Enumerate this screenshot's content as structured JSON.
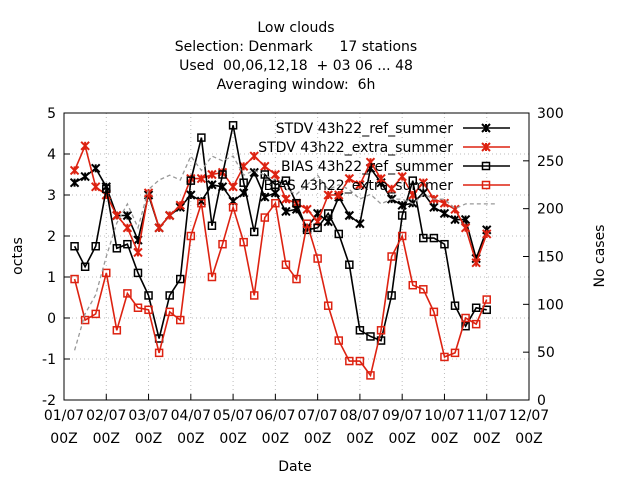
{
  "chart_data": {
    "type": "line",
    "title_lines": [
      "Low clouds",
      "Selection: Denmark      17 stations",
      "Used  00,06,12,18  + 03 06 ... 48",
      "Averaging window:  6h"
    ],
    "xlabel": "Date",
    "ylabel": "octas",
    "y2label": "No cases",
    "ylim": [
      -2,
      5
    ],
    "y2lim": [
      0,
      300
    ],
    "yticks": [
      -2,
      -1,
      0,
      1,
      2,
      3,
      4,
      5
    ],
    "y2ticks": [
      0,
      50,
      100,
      150,
      200,
      250,
      300
    ],
    "xlim": [
      0,
      11
    ],
    "xticks": [
      {
        "x": 0,
        "l1": "01/07",
        "l2": "00Z"
      },
      {
        "x": 1,
        "l1": "02/07",
        "l2": "00Z"
      },
      {
        "x": 2,
        "l1": "03/07",
        "l2": "00Z"
      },
      {
        "x": 3,
        "l1": "04/07",
        "l2": "00Z"
      },
      {
        "x": 4,
        "l1": "05/07",
        "l2": "00Z"
      },
      {
        "x": 5,
        "l1": "06/07",
        "l2": "00Z"
      },
      {
        "x": 6,
        "l1": "07/07",
        "l2": "00Z"
      },
      {
        "x": 7,
        "l1": "08/07",
        "l2": "00Z"
      },
      {
        "x": 8,
        "l1": "09/07",
        "l2": "00Z"
      },
      {
        "x": 9,
        "l1": "10/07",
        "l2": "00Z"
      },
      {
        "x": 10,
        "l1": "11/07",
        "l2": "00Z"
      },
      {
        "x": 11,
        "l1": "12/07",
        "l2": "00Z"
      }
    ],
    "legend_position": "top-right",
    "series": [
      {
        "name": "STDV 43h22_ref_summer",
        "color": "#000000",
        "marker": "star",
        "axis": "y",
        "points": [
          [
            0.25,
            3.3
          ],
          [
            0.5,
            3.45
          ],
          [
            0.75,
            3.65
          ],
          [
            1.0,
            3.2
          ],
          [
            1.25,
            2.5
          ],
          [
            1.5,
            2.5
          ],
          [
            1.75,
            1.9
          ],
          [
            2.0,
            3.0
          ],
          [
            2.25,
            2.2
          ],
          [
            2.5,
            2.5
          ],
          [
            2.75,
            2.7
          ],
          [
            3.0,
            3.0
          ],
          [
            3.25,
            2.85
          ],
          [
            3.5,
            3.25
          ],
          [
            3.75,
            3.2
          ],
          [
            4.0,
            2.85
          ],
          [
            4.25,
            3.05
          ],
          [
            4.5,
            3.55
          ],
          [
            4.75,
            2.95
          ],
          [
            5.0,
            3.05
          ],
          [
            5.25,
            2.6
          ],
          [
            5.5,
            2.65
          ],
          [
            5.75,
            2.2
          ],
          [
            6.0,
            2.55
          ],
          [
            6.25,
            2.35
          ],
          [
            6.5,
            2.95
          ],
          [
            6.75,
            2.5
          ],
          [
            7.0,
            2.3
          ],
          [
            7.25,
            3.65
          ],
          [
            7.5,
            3.3
          ],
          [
            7.75,
            2.9
          ],
          [
            8.0,
            2.75
          ],
          [
            8.25,
            2.8
          ],
          [
            8.5,
            3.05
          ],
          [
            8.75,
            2.7
          ],
          [
            9.0,
            2.55
          ],
          [
            9.25,
            2.4
          ],
          [
            9.5,
            2.4
          ],
          [
            9.75,
            1.45
          ],
          [
            10.0,
            2.15
          ]
        ]
      },
      {
        "name": "STDV 43h22_extra_summer",
        "color": "#dd2211",
        "marker": "star",
        "axis": "y",
        "points": [
          [
            0.25,
            3.6
          ],
          [
            0.5,
            4.2
          ],
          [
            0.75,
            3.2
          ],
          [
            1.0,
            3.0
          ],
          [
            1.25,
            2.5
          ],
          [
            1.5,
            2.2
          ],
          [
            1.75,
            1.6
          ],
          [
            2.0,
            3.05
          ],
          [
            2.25,
            2.2
          ],
          [
            2.5,
            2.5
          ],
          [
            2.75,
            2.75
          ],
          [
            3.0,
            3.4
          ],
          [
            3.25,
            3.4
          ],
          [
            3.5,
            3.5
          ],
          [
            3.75,
            3.55
          ],
          [
            4.0,
            3.2
          ],
          [
            4.25,
            3.7
          ],
          [
            4.5,
            3.95
          ],
          [
            4.75,
            3.7
          ],
          [
            5.0,
            3.5
          ],
          [
            5.25,
            2.9
          ],
          [
            5.5,
            2.8
          ],
          [
            5.75,
            2.65
          ],
          [
            6.0,
            2.35
          ],
          [
            6.25,
            3.0
          ],
          [
            6.5,
            3.0
          ],
          [
            6.75,
            3.4
          ],
          [
            7.0,
            3.25
          ],
          [
            7.25,
            3.8
          ],
          [
            7.5,
            3.4
          ],
          [
            7.75,
            3.15
          ],
          [
            8.0,
            3.45
          ],
          [
            8.25,
            3.0
          ],
          [
            8.5,
            3.3
          ],
          [
            8.75,
            2.9
          ],
          [
            9.0,
            2.8
          ],
          [
            9.25,
            2.65
          ],
          [
            9.5,
            2.2
          ],
          [
            9.75,
            1.35
          ],
          [
            10.0,
            2.05
          ]
        ]
      },
      {
        "name": "BIAS 43h22_ref_summer",
        "color": "#000000",
        "marker": "square",
        "axis": "y",
        "points": [
          [
            0.25,
            1.75
          ],
          [
            0.5,
            1.25
          ],
          [
            0.75,
            1.75
          ],
          [
            1.0,
            3.15
          ],
          [
            1.25,
            1.7
          ],
          [
            1.5,
            1.8
          ],
          [
            1.75,
            1.1
          ],
          [
            2.0,
            0.55
          ],
          [
            2.25,
            -0.5
          ],
          [
            2.5,
            0.55
          ],
          [
            2.75,
            0.95
          ],
          [
            3.0,
            3.35
          ],
          [
            3.25,
            4.4
          ],
          [
            3.5,
            2.25
          ],
          [
            3.75,
            3.5
          ],
          [
            4.0,
            4.7
          ],
          [
            4.25,
            3.3
          ],
          [
            4.5,
            2.1
          ],
          [
            4.75,
            3.5
          ],
          [
            5.0,
            3.25
          ],
          [
            5.25,
            3.35
          ],
          [
            5.5,
            2.8
          ],
          [
            5.75,
            2.15
          ],
          [
            6.0,
            2.2
          ],
          [
            6.25,
            2.55
          ],
          [
            6.5,
            2.05
          ],
          [
            6.75,
            1.3
          ],
          [
            7.0,
            -0.3
          ],
          [
            7.25,
            -0.45
          ],
          [
            7.5,
            -0.55
          ],
          [
            7.75,
            0.55
          ],
          [
            8.0,
            2.5
          ],
          [
            8.25,
            3.35
          ],
          [
            8.5,
            1.95
          ],
          [
            8.75,
            1.95
          ],
          [
            9.0,
            1.8
          ],
          [
            9.25,
            0.3
          ],
          [
            9.5,
            -0.2
          ],
          [
            9.75,
            0.25
          ],
          [
            10.0,
            0.2
          ]
        ]
      },
      {
        "name": "BIAS 43h22_extra_summer",
        "color": "#dd2211",
        "marker": "square",
        "axis": "y",
        "points": [
          [
            0.25,
            0.95
          ],
          [
            0.5,
            -0.05
          ],
          [
            0.75,
            0.1
          ],
          [
            1.0,
            1.1
          ],
          [
            1.25,
            -0.3
          ],
          [
            1.5,
            0.6
          ],
          [
            1.75,
            0.25
          ],
          [
            2.0,
            0.2
          ],
          [
            2.25,
            -0.85
          ],
          [
            2.5,
            0.15
          ],
          [
            2.75,
            -0.05
          ],
          [
            3.0,
            2.0
          ],
          [
            3.25,
            2.8
          ],
          [
            3.5,
            1.0
          ],
          [
            3.75,
            1.8
          ],
          [
            4.0,
            2.7
          ],
          [
            4.25,
            1.85
          ],
          [
            4.5,
            0.55
          ],
          [
            4.75,
            2.45
          ],
          [
            5.0,
            2.8
          ],
          [
            5.25,
            1.3
          ],
          [
            5.5,
            0.95
          ],
          [
            5.75,
            2.3
          ],
          [
            6.0,
            1.45
          ],
          [
            6.25,
            0.3
          ],
          [
            6.5,
            -0.55
          ],
          [
            6.75,
            -1.05
          ],
          [
            7.0,
            -1.05
          ],
          [
            7.25,
            -1.4
          ],
          [
            7.5,
            -0.3
          ],
          [
            7.75,
            1.5
          ],
          [
            8.0,
            2.0
          ],
          [
            8.25,
            0.8
          ],
          [
            8.5,
            0.7
          ],
          [
            8.75,
            0.15
          ],
          [
            9.0,
            -0.95
          ],
          [
            9.25,
            -0.85
          ],
          [
            9.5,
            0.0
          ],
          [
            9.75,
            -0.15
          ],
          [
            10.0,
            0.45
          ]
        ]
      },
      {
        "name": "",
        "color": "#999999",
        "marker": "none",
        "dashed": true,
        "axis": "y2",
        "points": [
          [
            0.25,
            52
          ],
          [
            0.5,
            90
          ],
          [
            0.75,
            110
          ],
          [
            1.0,
            150
          ],
          [
            1.25,
            185
          ],
          [
            1.5,
            205
          ],
          [
            1.75,
            180
          ],
          [
            2.0,
            220
          ],
          [
            2.25,
            230
          ],
          [
            2.5,
            235
          ],
          [
            2.75,
            230
          ],
          [
            3.0,
            255
          ],
          [
            3.25,
            240
          ],
          [
            3.5,
            255
          ],
          [
            3.75,
            250
          ],
          [
            4.0,
            255
          ],
          [
            4.25,
            235
          ],
          [
            4.5,
            240
          ],
          [
            4.75,
            235
          ],
          [
            5.0,
            230
          ],
          [
            5.25,
            220
          ],
          [
            5.5,
            215
          ],
          [
            5.75,
            225
          ],
          [
            6.0,
            235
          ],
          [
            6.25,
            220
          ],
          [
            6.5,
            225
          ],
          [
            6.75,
            220
          ],
          [
            7.0,
            210
          ],
          [
            7.25,
            215
          ],
          [
            7.5,
            205
          ],
          [
            7.75,
            210
          ],
          [
            8.0,
            210
          ],
          [
            8.25,
            205
          ],
          [
            8.5,
            215
          ],
          [
            8.75,
            210
          ],
          [
            9.0,
            210
          ],
          [
            9.25,
            200
          ],
          [
            9.5,
            205
          ],
          [
            9.75,
            205
          ],
          [
            10.0,
            205
          ],
          [
            10.25,
            205
          ]
        ]
      }
    ],
    "legend": [
      {
        "label": "STDV 43h22_ref_summer",
        "color": "#000000",
        "marker": "star"
      },
      {
        "label": "STDV 43h22_extra_summer",
        "color": "#dd2211",
        "marker": "star"
      },
      {
        "label": "BIAS 43h22_ref_summer",
        "color": "#000000",
        "marker": "square"
      },
      {
        "label": "BIAS 43h22_extra_summer",
        "color": "#dd2211",
        "marker": "square"
      }
    ]
  }
}
